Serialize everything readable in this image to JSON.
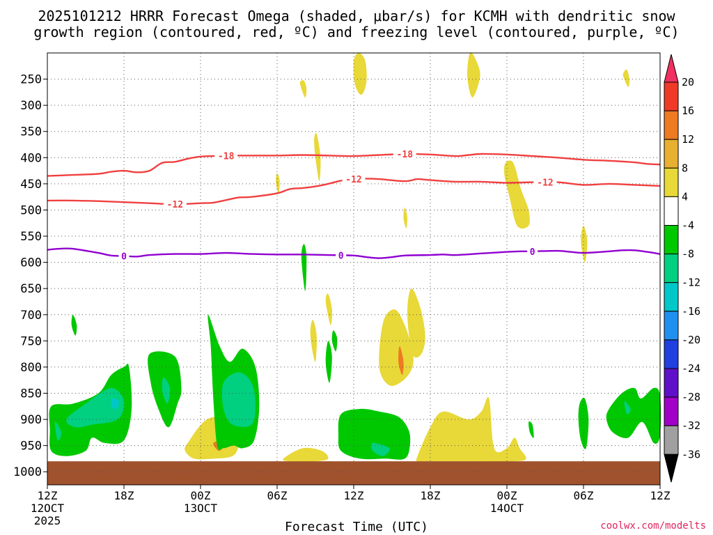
{
  "chart_data": {
    "type": "contour",
    "title_line1": "2025101212 HRRR Forecast Omega (shaded, μbar/s) for KCMH with dendritic snow",
    "title_line2": "growth region (contoured, red, ºC) and freezing level (contoured, purple, ºC)",
    "xlabel": "Forecast Time (UTC)",
    "credit": "coolwx.com/modelts",
    "x_range_hours": [
      0,
      48
    ],
    "x_ticks": [
      {
        "hour": 0,
        "label": "12Z",
        "sub1": "12OCT",
        "sub2": "2025"
      },
      {
        "hour": 6,
        "label": "18Z"
      },
      {
        "hour": 12,
        "label": "00Z",
        "sub1": "13OCT"
      },
      {
        "hour": 18,
        "label": "06Z"
      },
      {
        "hour": 24,
        "label": "12Z"
      },
      {
        "hour": 30,
        "label": "18Z"
      },
      {
        "hour": 36,
        "label": "00Z",
        "sub1": "14OCT"
      },
      {
        "hour": 42,
        "label": "06Z"
      },
      {
        "hour": 48,
        "label": "12Z"
      }
    ],
    "y_ticks": [
      "250",
      "300",
      "350",
      "400",
      "450",
      "500",
      "550",
      "600",
      "650",
      "700",
      "750",
      "800",
      "850",
      "900",
      "950",
      "1000"
    ],
    "y_ticks_hpa": [
      250,
      300,
      350,
      400,
      450,
      500,
      550,
      600,
      650,
      700,
      750,
      800,
      850,
      900,
      950,
      1000
    ],
    "y_range_hpa": [
      200,
      1025
    ],
    "surface_hpa": 980,
    "colorbar_labels": [
      "20",
      "16",
      "12",
      "8",
      "4",
      "-4",
      "-8",
      "-12",
      "-16",
      "-20",
      "-24",
      "-28",
      "-32",
      "-36"
    ],
    "colorbar_colors": [
      "#f03060",
      "#f03a28",
      "#ee7a22",
      "#e8b030",
      "#e8d838",
      "#ffffff",
      "#00c800",
      "#00d080",
      "#00c8c8",
      "#2090f0",
      "#2040e0",
      "#6010c8",
      "#a000c8",
      "#a0a0a0",
      "#000000"
    ],
    "contours": [
      {
        "name": "t-18",
        "label": "-18",
        "color": "#f04040",
        "x": [
          0,
          2,
          4,
          5,
          6,
          7,
          8,
          9,
          10,
          11,
          12,
          13,
          14,
          16,
          18,
          20,
          22,
          24,
          26,
          28,
          30,
          32,
          33,
          34,
          36,
          38,
          40,
          42,
          44,
          46,
          47,
          48
        ],
        "p": [
          435,
          433,
          431,
          427,
          425,
          428,
          425,
          410,
          408,
          402,
          398,
          397,
          396,
          396,
          396,
          395,
          396,
          397,
          395,
          393,
          394,
          397,
          395,
          393,
          394,
          397,
          400,
          404,
          406,
          409,
          412,
          413
        ],
        "labels": [
          {
            "x": 14,
            "text": "-18"
          },
          {
            "x": 28,
            "text": "-18"
          }
        ]
      },
      {
        "name": "t-12",
        "label": "-12",
        "color": "#f04040",
        "x": [
          0,
          2,
          4,
          6,
          8,
          10,
          12,
          13,
          14,
          15,
          16,
          18,
          19,
          20,
          21,
          22,
          23,
          24,
          25,
          26,
          28,
          29,
          30,
          32,
          34,
          36,
          38,
          40,
          42,
          44,
          46,
          48
        ],
        "p": [
          482,
          482,
          483,
          485,
          487,
          489,
          487,
          486,
          481,
          476,
          475,
          468,
          460,
          458,
          455,
          450,
          444,
          441,
          440,
          441,
          445,
          441,
          443,
          446,
          446,
          448,
          447,
          447,
          452,
          450,
          452,
          454
        ],
        "labels": [
          {
            "x": 10,
            "text": "-12"
          },
          {
            "x": 24,
            "text": "-12"
          },
          {
            "x": 39,
            "text": "-12"
          }
        ]
      },
      {
        "name": "t0",
        "label": "0",
        "color": "#9000d0",
        "x": [
          0,
          1,
          2,
          4,
          5,
          6,
          7,
          8,
          10,
          12,
          14,
          16,
          18,
          20,
          22,
          24,
          25,
          26,
          27,
          28,
          30,
          31,
          32,
          34,
          36,
          37,
          38,
          40,
          41,
          42,
          44,
          45,
          46,
          47,
          48
        ],
        "p": [
          576,
          574,
          574,
          582,
          587,
          588,
          589,
          586,
          584,
          584,
          582,
          584,
          585,
          585,
          586,
          587,
          590,
          592,
          590,
          587,
          586,
          585,
          586,
          583,
          580,
          579,
          579,
          578,
          580,
          582,
          579,
          577,
          577,
          580,
          584
        ],
        "labels": [
          {
            "x": 6,
            "text": "0"
          },
          {
            "x": 23,
            "text": "0"
          },
          {
            "x": 38,
            "text": "0"
          }
        ]
      }
    ],
    "shaded_regions": [
      {
        "name": "omega-pos-upper-a",
        "value": "4 to 8",
        "x": [
          24.4,
          24.9,
          25.0,
          24.6,
          24.1,
          24.0
        ],
        "p": [
          200,
          215,
          255,
          280,
          260,
          215
        ]
      },
      {
        "name": "omega-pos-upper-b",
        "value": "4 to 8",
        "x": [
          33.1,
          33.6,
          33.9,
          33.3,
          32.9
        ],
        "p": [
          200,
          215,
          245,
          285,
          245
        ]
      },
      {
        "name": "omega-pos-upper-c",
        "value": "4 to 8",
        "x": [
          20.1,
          20.3,
          20.2,
          19.9,
          19.8
        ],
        "p": [
          253,
          268,
          285,
          268,
          255
        ]
      },
      {
        "name": "omega-pos-upper-d",
        "value": "4 to 8",
        "x": [
          45.4,
          45.6,
          45.5,
          45.2,
          45.1
        ],
        "p": [
          232,
          252,
          265,
          250,
          240
        ]
      },
      {
        "name": "omega-pos-mid-a",
        "value": "4 to 8",
        "x": [
          21.1,
          21.4,
          21.3,
          21.0,
          20.9
        ],
        "p": [
          355,
          400,
          445,
          400,
          365
        ]
      },
      {
        "name": "omega-pos-mid-b",
        "value": "4 to 8",
        "x": [
          35.9,
          36.5,
          37.1,
          37.7,
          37.7,
          36.8,
          36.2,
          35.8
        ],
        "p": [
          410,
          410,
          460,
          500,
          530,
          530,
          475,
          432
        ]
      },
      {
        "name": "omega-pos-pt-a",
        "value": "4 to 8",
        "x": [
          18.0,
          18.2,
          18.1,
          17.9
        ],
        "p": [
          430,
          445,
          470,
          445
        ]
      },
      {
        "name": "omega-pos-pt-b",
        "value": "4 to 8",
        "x": [
          28.0,
          28.2,
          28.1,
          27.9
        ],
        "p": [
          495,
          515,
          535,
          515
        ]
      },
      {
        "name": "omega-pos-pt-c",
        "value": "4 to 8",
        "x": [
          42.0,
          42.3,
          42.1,
          41.8
        ],
        "p": [
          530,
          560,
          600,
          560
        ]
      },
      {
        "name": "omega-pos-low-a",
        "value": "4 to 8",
        "x": [
          22.0,
          22.3,
          22.2,
          21.9,
          21.8
        ],
        "p": [
          660,
          690,
          720,
          690,
          670
        ]
      },
      {
        "name": "omega-pos-low-b",
        "value": "4 to 8",
        "x": [
          28.5,
          29.2,
          29.6,
          29.3,
          28.6,
          28.2
        ],
        "p": [
          650,
          685,
          740,
          775,
          775,
          700
        ]
      },
      {
        "name": "omega-pos-low-c",
        "value": "4 to 8",
        "x": [
          26.3,
          27.2,
          28.0,
          28.6,
          28.6,
          27.9,
          26.8,
          26.0
        ],
        "p": [
          715,
          690,
          720,
          770,
          800,
          825,
          835,
          800
        ]
      },
      {
        "name": "omega-pos-low-d",
        "value": "4 to 8",
        "x": [
          20.8,
          21.1,
          21.0,
          20.7,
          20.6
        ],
        "p": [
          710,
          740,
          790,
          760,
          730
        ]
      },
      {
        "name": "omega-pos-sfc-a",
        "value": "4 to 8",
        "x": [
          11.0,
          12.5,
          14.5,
          15.2,
          15.0,
          14.5,
          13.0,
          11.5,
          10.8
        ],
        "p": [
          945,
          900,
          895,
          920,
          950,
          970,
          975,
          975,
          960
        ]
      },
      {
        "name": "omega-pos-sfc-b",
        "value": "4 to 8",
        "x": [
          18.5,
          20.0,
          21.5,
          22.0,
          21.0,
          19.0
        ],
        "p": [
          975,
          955,
          960,
          975,
          980,
          980
        ]
      },
      {
        "name": "omega-pos-sfc-c",
        "value": "4 to 8",
        "x": [
          29.0,
          30.0,
          31.0,
          33.0,
          34.0,
          34.6,
          35.0,
          36.0,
          36.6,
          37.0,
          37.5,
          36.5,
          33.0,
          30.0,
          29.0
        ],
        "p": [
          970,
          915,
          885,
          900,
          885,
          860,
          955,
          955,
          935,
          955,
          975,
          980,
          980,
          980,
          980
        ]
      },
      {
        "name": "omega-pos-core-a",
        "value": "12 to 16",
        "x": [
          27.6,
          27.9,
          27.8,
          27.5
        ],
        "p": [
          760,
          790,
          815,
          790
        ]
      },
      {
        "name": "omega-pos-core-b",
        "value": "12 to 16",
        "x": [
          13.0,
          14.0,
          13.5
        ],
        "p": [
          945,
          940,
          960
        ]
      },
      {
        "name": "omega-neg-a",
        "value": "-4 to -8",
        "x": [
          2.0,
          2.3,
          2.2,
          1.9
        ],
        "p": [
          700,
          720,
          740,
          720
        ]
      },
      {
        "name": "omega-neg-b",
        "value": "-4 to -8",
        "x": [
          0.3,
          2.0,
          4.0,
          5.0,
          6.0,
          6.4,
          6.6,
          6.0,
          4.5,
          3.5,
          3.0,
          1.5,
          0.3,
          0.2
        ],
        "p": [
          875,
          870,
          850,
          815,
          800,
          800,
          880,
          940,
          945,
          935,
          960,
          970,
          960,
          920
        ]
      },
      {
        "name": "omega-neg-c",
        "value": "-4 to -8",
        "x": [
          8.0,
          10.0,
          10.5,
          10.2,
          9.5,
          8.7,
          8.1
        ],
        "p": [
          775,
          780,
          840,
          870,
          915,
          880,
          830
        ]
      },
      {
        "name": "omega-neg-d",
        "value": "-4 to -8",
        "x": [
          12.6,
          13.5,
          14.3,
          15.3,
          16.3,
          16.6,
          16.2,
          15.3,
          14.6,
          13.8,
          13.3,
          13.0,
          12.8
        ],
        "p": [
          700,
          760,
          790,
          765,
          800,
          875,
          940,
          955,
          950,
          955,
          950,
          860,
          760
        ]
      },
      {
        "name": "omega-neg-e",
        "value": "-4 to -8",
        "x": [
          20.1,
          20.3,
          20.2,
          19.9
        ],
        "p": [
          565,
          590,
          655,
          590
        ]
      },
      {
        "name": "omega-neg-f",
        "value": "-4 to -8",
        "x": [
          22.0,
          22.3,
          22.1,
          21.8
        ],
        "p": [
          750,
          780,
          830,
          790
        ]
      },
      {
        "name": "omega-neg-g",
        "value": "-4 to -8",
        "x": [
          22.4,
          22.7,
          22.6,
          22.3
        ],
        "p": [
          730,
          745,
          770,
          750
        ]
      },
      {
        "name": "omega-neg-h",
        "value": "-4 to -8",
        "x": [
          23.0,
          24.5,
          26.0,
          27.5,
          28.3,
          28.4,
          28.0,
          26.5,
          24.5,
          23.0,
          22.8
        ],
        "p": [
          890,
          880,
          885,
          895,
          920,
          950,
          975,
          975,
          975,
          960,
          930
        ]
      },
      {
        "name": "omega-neg-i",
        "value": "-4 to -8",
        "x": [
          37.7,
          38.0,
          38.1,
          37.8
        ],
        "p": [
          905,
          910,
          935,
          925
        ]
      },
      {
        "name": "omega-neg-j",
        "value": "-4 to -8",
        "x": [
          41.7,
          42.1,
          42.4,
          42.2,
          41.8,
          41.6
        ],
        "p": [
          870,
          860,
          900,
          955,
          940,
          900
        ]
      },
      {
        "name": "omega-neg-k",
        "value": "-4 to -8",
        "x": [
          44.0,
          45.0,
          46.0,
          46.5,
          47.5,
          48.0,
          48.0,
          47.5,
          46.6,
          45.5,
          44.3,
          43.8
        ],
        "p": [
          880,
          850,
          840,
          860,
          840,
          855,
          930,
          945,
          905,
          935,
          925,
          900
        ]
      },
      {
        "name": "omega-neg-l",
        "value": "-8 to -12",
        "x": [
          1.5,
          3.0,
          5.0,
          6.0,
          5.5,
          3.5,
          2.2
        ],
        "p": [
          900,
          870,
          840,
          865,
          900,
          910,
          915
        ]
      },
      {
        "name": "omega-neg-m",
        "value": "-8 to -12",
        "x": [
          9.1,
          9.6,
          9.4,
          9.0
        ],
        "p": [
          820,
          840,
          870,
          845
        ]
      },
      {
        "name": "omega-neg-n",
        "value": "-8 to -12",
        "x": [
          13.8,
          15.0,
          16.0,
          16.3,
          16.0,
          14.5,
          13.8
        ],
        "p": [
          830,
          810,
          830,
          870,
          910,
          910,
          880
        ]
      },
      {
        "name": "omega-neg-o",
        "value": "-8 to -12",
        "x": [
          0.6,
          1.1,
          0.8
        ],
        "p": [
          905,
          925,
          940
        ]
      },
      {
        "name": "omega-neg-p",
        "value": "-8 to -12",
        "x": [
          25.5,
          26.8,
          26.3,
          25.5
        ],
        "p": [
          945,
          955,
          970,
          960
        ]
      },
      {
        "name": "omega-neg-q",
        "value": "-8 to -12",
        "x": [
          45.2,
          45.7,
          45.4
        ],
        "p": [
          865,
          880,
          890
        ]
      },
      {
        "name": "omega-neg-r",
        "value": "-12 to -16",
        "x": [
          5.1,
          5.6,
          5.4,
          5.0
        ],
        "p": [
          860,
          865,
          880,
          875
        ]
      }
    ]
  }
}
